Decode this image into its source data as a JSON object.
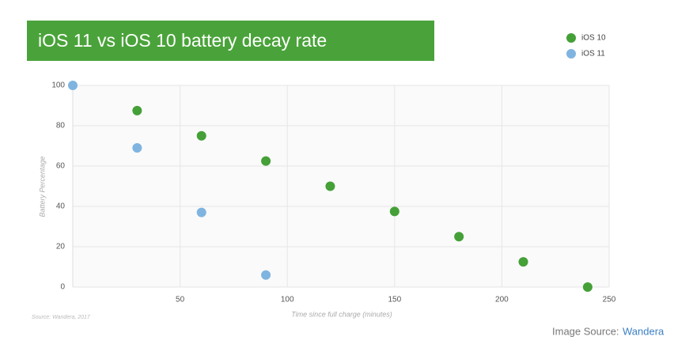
{
  "chart_data": {
    "type": "scatter",
    "title": "iOS 11 vs iOS 10 battery decay rate",
    "x_label": "Time since full charge (minutes)",
    "y_label": "Battery Percentage",
    "source": "Source: Wandera, 2017",
    "series": [
      {
        "name": "iOS 10",
        "color": "#44a037",
        "x": [
          30,
          60,
          90,
          120,
          150,
          180,
          210,
          240
        ],
        "values": [
          87.5,
          75,
          62.5,
          50,
          37.5,
          25,
          12.5,
          0
        ]
      },
      {
        "name": "iOS 11",
        "color": "#7fb4e0",
        "x": [
          0,
          30,
          60,
          90
        ],
        "values": [
          100,
          69,
          37,
          6
        ]
      }
    ],
    "xlim": [
      0,
      250
    ],
    "xticks": [
      50,
      100,
      150,
      200,
      250
    ],
    "ylim": [
      0,
      100
    ],
    "yticks": [
      0,
      20,
      40,
      60,
      80,
      100
    ],
    "grid": true,
    "legend": "top-right"
  },
  "image_source": {
    "label": "Image Source:",
    "link": "Wandera"
  }
}
